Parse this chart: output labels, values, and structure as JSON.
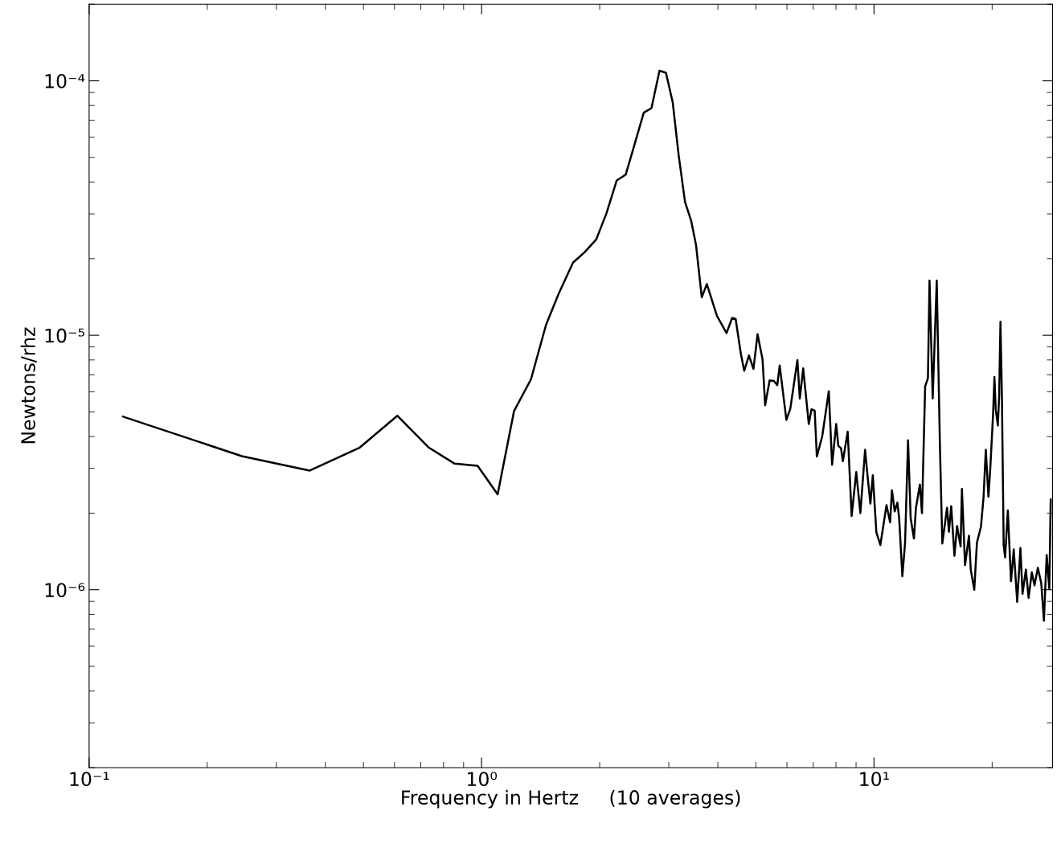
{
  "chart_data": {
    "type": "line",
    "xlabel": "Frequency in Hertz     (10 averages)",
    "ylabel": "Newtons/rhz",
    "log": "xy",
    "grid": false,
    "marker": "none",
    "line_style": "solid",
    "xlim": [
      0.1,
      28.5
    ],
    "ylim": [
      2e-07,
      0.0002
    ],
    "xticks": [
      {
        "value": 0.1,
        "label": "10⁻¹"
      },
      {
        "value": 1,
        "label": "10⁰"
      },
      {
        "value": 10,
        "label": "10¹"
      }
    ],
    "yticks": [
      {
        "value": 1e-06,
        "label": "10⁻⁶"
      },
      {
        "value": 1e-05,
        "label": "10⁻⁵"
      },
      {
        "value": 0.0001,
        "label": "10⁻⁴"
      }
    ],
    "series": [
      {
        "color": "#000000",
        "x": [
          0.122,
          0.245,
          0.365,
          0.488,
          0.61,
          0.732,
          0.854,
          0.977,
          1.099,
          1.21,
          1.336,
          1.46,
          1.57,
          1.71,
          1.83,
          1.96,
          2.08,
          2.21,
          2.33,
          2.46,
          2.59,
          2.71,
          2.84,
          2.95,
          3.07,
          3.18,
          3.3,
          3.42,
          3.52,
          3.64,
          3.75,
          3.98,
          4.21,
          4.35,
          4.44,
          4.58,
          4.67,
          4.8,
          4.93,
          5.05,
          5.2,
          5.28,
          5.42,
          5.56,
          5.67,
          5.75,
          5.98,
          6.12,
          6.38,
          6.47,
          6.6,
          6.82,
          6.93,
          7.06,
          7.15,
          7.38,
          7.67,
          7.82,
          8.01,
          8.11,
          8.24,
          8.33,
          8.57,
          8.77,
          9.01,
          9.23,
          9.49,
          9.64,
          9.79,
          9.93,
          10.14,
          10.38,
          10.76,
          10.99,
          11.11,
          11.29,
          11.47,
          11.59,
          11.81,
          12.0,
          12.21,
          12.4,
          12.64,
          12.79,
          13.09,
          13.25,
          13.5,
          13.72,
          13.85,
          14.11,
          14.45,
          14.72,
          14.93,
          15.35,
          15.52,
          15.73,
          16.03,
          16.28,
          16.62,
          16.75,
          17.06,
          17.36,
          17.46,
          17.64,
          18.01,
          18.29,
          18.73,
          19.02,
          19.27,
          19.57,
          19.79,
          20.1,
          20.27,
          20.42,
          20.68,
          20.84,
          21.0,
          21.18,
          21.4,
          21.58,
          21.93,
          22.34,
          22.7,
          23.17,
          23.61,
          23.9,
          24.38,
          24.77,
          25.24,
          25.64,
          26.15,
          26.68,
          27.1,
          27.54,
          27.97,
          28.2
        ],
        "values": [
          4.79e-06,
          3.35e-06,
          2.94e-06,
          3.61e-06,
          4.83e-06,
          3.63e-06,
          3.13e-06,
          3.07e-06,
          2.37e-06,
          5.04e-06,
          6.71e-06,
          1.1e-05,
          1.45e-05,
          1.93e-05,
          2.12e-05,
          2.38e-05,
          3.01e-05,
          4.06e-05,
          4.28e-05,
          5.7e-05,
          7.5e-05,
          7.81e-05,
          0.0001096,
          0.0001076,
          8.22e-05,
          5.07e-05,
          3.34e-05,
          2.82e-05,
          2.26e-05,
          1.41e-05,
          1.59e-05,
          1.19e-05,
          1.02e-05,
          1.17e-05,
          1.16e-05,
          8.43e-06,
          7.25e-06,
          8.33e-06,
          7.38e-06,
          1.01e-05,
          8.03e-06,
          5.31e-06,
          6.65e-06,
          6.61e-06,
          6.37e-06,
          7.61e-06,
          4.65e-06,
          5.15e-06,
          7.99e-06,
          5.64e-06,
          7.41e-06,
          4.48e-06,
          5.12e-06,
          5.06e-06,
          3.34e-06,
          4.01e-06,
          6.03e-06,
          3.1e-06,
          4.48e-06,
          3.68e-06,
          3.6e-06,
          3.2e-06,
          4.18e-06,
          1.95e-06,
          2.9e-06,
          2e-06,
          3.55e-06,
          2.75e-06,
          2.18e-06,
          2.82e-06,
          1.68e-06,
          1.5e-06,
          2.15e-06,
          1.84e-06,
          2.46e-06,
          2.03e-06,
          2.2e-06,
          1.91e-06,
          1.13e-06,
          1.53e-06,
          3.87e-06,
          1.91e-06,
          1.59e-06,
          2.1e-06,
          2.59e-06,
          2e-06,
          6.3e-06,
          6.78e-06,
          1.64e-05,
          5.65e-06,
          1.64e-05,
          3.7e-06,
          1.52e-06,
          2.1e-06,
          1.69e-06,
          2.13e-06,
          1.36e-06,
          1.78e-06,
          1.48e-06,
          2.49e-06,
          1.25e-06,
          1.53e-06,
          1.63e-06,
          1.2e-06,
          1e-06,
          1.53e-06,
          1.77e-06,
          2.32e-06,
          3.55e-06,
          2.32e-06,
          3.03e-06,
          4.82e-06,
          6.86e-06,
          5.12e-06,
          4.42e-06,
          5.78e-06,
          1.13e-05,
          5.71e-06,
          1.5e-06,
          1.34e-06,
          2.05e-06,
          1.08e-06,
          1.44e-06,
          8.96e-07,
          1.46e-06,
          9.64e-07,
          1.2e-06,
          9.29e-07,
          1.17e-06,
          1.04e-06,
          1.22e-06,
          1.06e-06,
          7.55e-07,
          1.37e-06,
          1.01e-06,
          2.26e-06
        ]
      }
    ]
  }
}
